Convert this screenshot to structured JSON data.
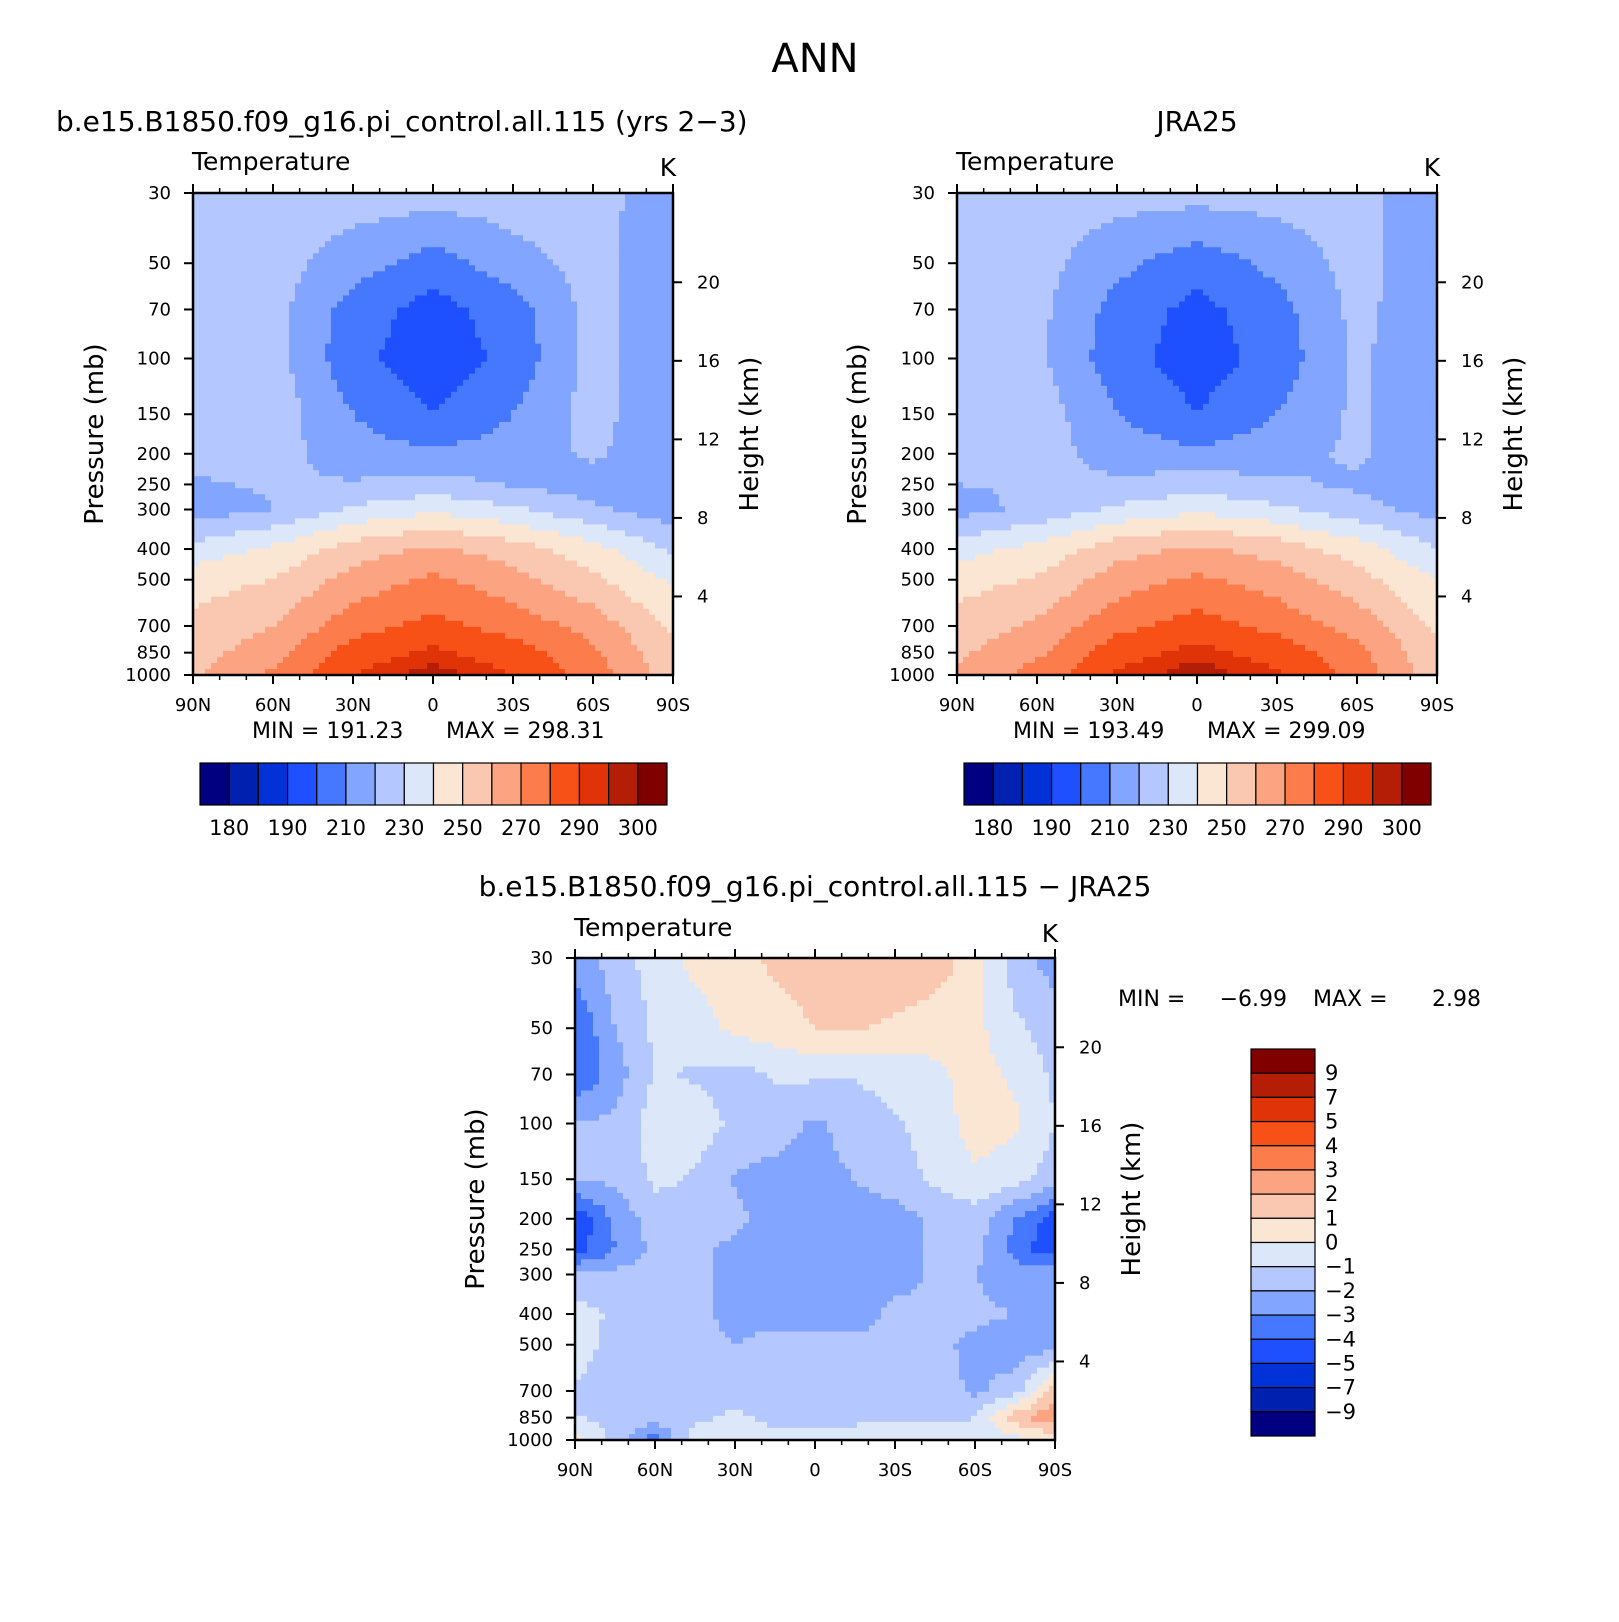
{
  "page_title": "ANN",
  "chart_data": [
    {
      "type": "heatmap",
      "id": "model",
      "title": "b.e15.B1850.f09_g16.pi_control.all.115 (yrs 2−3)",
      "variable": "Temperature",
      "units": "K",
      "ylabel": "Pressure (mb)",
      "y2label": "Height (km)",
      "x": [
        "90N",
        "60N",
        "30N",
        "0",
        "30S",
        "60S",
        "90S"
      ],
      "y": [
        "30",
        "50",
        "70",
        "100",
        "150",
        "200",
        "250",
        "300",
        "400",
        "500",
        "700",
        "850",
        "1000"
      ],
      "y2": [
        "20",
        "16",
        "12",
        "8",
        "4"
      ],
      "min_label": "MIN = 191.23",
      "max_label": "MAX = 298.31",
      "min": 191.23,
      "max": 298.31,
      "colorbar": {
        "orientation": "horizontal",
        "colors": [
          "#000080",
          "#0020b0",
          "#0032d8",
          "#1e50ff",
          "#4678ff",
          "#82a5ff",
          "#b4c8ff",
          "#dce8fa",
          "#fbe6d4",
          "#fac8b0",
          "#fca482",
          "#fc7d4b",
          "#f85118",
          "#e13308",
          "#b41e06",
          "#800000"
        ],
        "labels": [
          "180",
          "190",
          "210",
          "230",
          "250",
          "270",
          "290",
          "300"
        ]
      },
      "contour_levels": [
        180,
        185,
        190,
        200,
        210,
        220,
        230,
        240,
        250,
        260,
        270,
        280,
        290,
        295,
        300
      ],
      "lat": [
        90,
        60,
        30,
        0,
        -30,
        -60,
        -90
      ],
      "values": [
        [
          222,
          225,
          225,
          225,
          225,
          225,
          212
        ],
        [
          222,
          224,
          215,
          205,
          216,
          224,
          211
        ],
        [
          222,
          224,
          205,
          196,
          205,
          224,
          211
        ],
        [
          222,
          224,
          203,
          194,
          203,
          224,
          211
        ],
        [
          224,
          226,
          210,
          200,
          210,
          224,
          211
        ],
        [
          222,
          224,
          214,
          212,
          214,
          222,
          211
        ],
        [
          219,
          221,
          221,
          224,
          219,
          215,
          212
        ],
        [
          214,
          220,
          232,
          238,
          232,
          222,
          214
        ],
        [
          234,
          242,
          255,
          262,
          255,
          244,
          228
        ],
        [
          246,
          250,
          264,
          272,
          264,
          252,
          238
        ],
        [
          252,
          260,
          276,
          283,
          276,
          266,
          248
        ],
        [
          256,
          266,
          285,
          292,
          285,
          272,
          252
        ],
        [
          258,
          272,
          290,
          298,
          290,
          276,
          254
        ]
      ]
    },
    {
      "type": "heatmap",
      "id": "obs",
      "title": "JRA25",
      "variable": "Temperature",
      "units": "K",
      "ylabel": "Pressure (mb)",
      "y2label": "Height (km)",
      "x": [
        "90N",
        "60N",
        "30N",
        "0",
        "30S",
        "60S",
        "90S"
      ],
      "y": [
        "30",
        "50",
        "70",
        "100",
        "150",
        "200",
        "250",
        "300",
        "400",
        "500",
        "700",
        "850",
        "1000"
      ],
      "y2": [
        "20",
        "16",
        "12",
        "8",
        "4"
      ],
      "min_label": "MIN = 193.49",
      "max_label": "MAX = 299.09",
      "min": 193.49,
      "max": 299.09,
      "colorbar": {
        "orientation": "horizontal",
        "colors": [
          "#000080",
          "#0020b0",
          "#0032d8",
          "#1e50ff",
          "#4678ff",
          "#82a5ff",
          "#b4c8ff",
          "#dce8fa",
          "#fbe6d4",
          "#fac8b0",
          "#fca482",
          "#fc7d4b",
          "#f85118",
          "#e13308",
          "#b41e06",
          "#800000"
        ],
        "labels": [
          "180",
          "190",
          "210",
          "230",
          "250",
          "270",
          "290",
          "300"
        ]
      },
      "contour_levels": [
        180,
        185,
        190,
        200,
        210,
        220,
        230,
        240,
        250,
        260,
        270,
        280,
        290,
        295,
        300
      ],
      "lat": [
        90,
        60,
        30,
        0,
        -30,
        -60,
        -90
      ],
      "values": [
        [
          222,
          224,
          224,
          224,
          224,
          224,
          212
        ],
        [
          222,
          224,
          213,
          204,
          213,
          224,
          212
        ],
        [
          222,
          223,
          206,
          197,
          206,
          223,
          212
        ],
        [
          222,
          222,
          204,
          195,
          204,
          222,
          211
        ],
        [
          226,
          226,
          210,
          200,
          210,
          222,
          212
        ],
        [
          226,
          224,
          216,
          212,
          216,
          222,
          212
        ],
        [
          220,
          221,
          222,
          225,
          222,
          218,
          214
        ],
        [
          216,
          223,
          232,
          238,
          232,
          224,
          216
        ],
        [
          236,
          243,
          256,
          262,
          256,
          245,
          230
        ],
        [
          246,
          251,
          265,
          272,
          265,
          254,
          240
        ],
        [
          254,
          262,
          277,
          284,
          277,
          266,
          248
        ],
        [
          258,
          268,
          286,
          293,
          286,
          273,
          252
        ],
        [
          262,
          274,
          291,
          299,
          291,
          276,
          254
        ]
      ]
    },
    {
      "type": "heatmap",
      "id": "diff",
      "title": "b.e15.B1850.f09_g16.pi_control.all.115 − JRA25",
      "variable": "Temperature",
      "units": "K",
      "ylabel": "Pressure (mb)",
      "y2label": "Height (km)",
      "x": [
        "90N",
        "60N",
        "30N",
        "0",
        "30S",
        "60S",
        "90S"
      ],
      "y": [
        "30",
        "50",
        "70",
        "100",
        "150",
        "200",
        "250",
        "300",
        "400",
        "500",
        "700",
        "850",
        "1000"
      ],
      "y2": [
        "20",
        "16",
        "12",
        "8",
        "4"
      ],
      "min_label": "MIN =",
      "min_value": "−6.99",
      "max_label": "MAX =",
      "max_value": "2.98",
      "min": -6.99,
      "max": 2.98,
      "colorbar": {
        "orientation": "vertical",
        "colors": [
          "#000080",
          "#0020b0",
          "#0032d8",
          "#1e50ff",
          "#4678ff",
          "#82a5ff",
          "#b4c8ff",
          "#dce8fa",
          "#fbe6d4",
          "#fac8b0",
          "#fca482",
          "#fc7d4b",
          "#f85118",
          "#e13308",
          "#b41e06",
          "#800000"
        ],
        "labels": [
          "9",
          "7",
          "5",
          "4",
          "3",
          "2",
          "1",
          "0",
          "−1",
          "−2",
          "−3",
          "−4",
          "−5",
          "−7",
          "−9"
        ]
      },
      "contour_levels": [
        -9,
        -7,
        -5,
        -4,
        -3,
        -2,
        -1,
        0,
        1,
        2,
        3,
        4,
        5,
        7,
        9
      ],
      "lat": [
        90,
        75,
        60,
        45,
        30,
        15,
        0,
        -15,
        -30,
        -45,
        -60,
        -75,
        -90
      ],
      "values": [
        [
          -2.5,
          -1.5,
          -0.5,
          0.3,
          0.6,
          1.2,
          1.5,
          1.8,
          1.9,
          1.6,
          0.5,
          -1.5,
          -2.5
        ],
        [
          -4.0,
          -2.0,
          -0.8,
          -0.5,
          0.3,
          0.6,
          1.0,
          1.1,
          0.8,
          0.4,
          0.3,
          -0.8,
          -1.5
        ],
        [
          -4.0,
          -2.5,
          -0.9,
          -1.1,
          -1.4,
          -0.9,
          -0.8,
          -0.9,
          -0.6,
          -0.2,
          0.4,
          -0.2,
          -1.2
        ],
        [
          -2.0,
          -1.8,
          -0.5,
          -0.5,
          -1.2,
          -1.5,
          -2.2,
          -1.6,
          -1.1,
          -0.6,
          0.5,
          0.2,
          -1.0
        ],
        [
          -2.0,
          -1.8,
          -0.8,
          -1.1,
          -2.1,
          -2.4,
          -2.3,
          -2.0,
          -1.5,
          -0.8,
          -0.2,
          -0.6,
          -1.5
        ],
        [
          -4.8,
          -2.8,
          -1.4,
          -1.4,
          -1.8,
          -2.3,
          -2.4,
          -2.4,
          -2.4,
          -1.8,
          -1.5,
          -3.0,
          -4.5
        ],
        [
          -4.5,
          -3.0,
          -1.7,
          -1.8,
          -2.2,
          -2.2,
          -2.4,
          -2.2,
          -2.2,
          -1.9,
          -1.6,
          -3.4,
          -4.8
        ],
        [
          -1.8,
          -1.7,
          -1.6,
          -1.8,
          -2.2,
          -2.5,
          -2.5,
          -2.3,
          -2.3,
          -1.9,
          -2.0,
          -2.5,
          -2.0
        ],
        [
          -0.5,
          -1.2,
          -1.6,
          -1.8,
          -2.2,
          -2.2,
          -2.2,
          -2.4,
          -1.8,
          -1.8,
          -1.8,
          -2.0,
          -2.5
        ],
        [
          -0.6,
          -1.3,
          -1.6,
          -1.8,
          -2.0,
          -1.8,
          -1.8,
          -1.8,
          -1.8,
          -1.8,
          -2.2,
          -2.6,
          -2.5
        ],
        [
          -1.1,
          -1.4,
          -1.6,
          -1.8,
          -1.5,
          -1.5,
          -1.6,
          -1.6,
          -1.8,
          -1.5,
          -2.2,
          -1.5,
          1.5
        ],
        [
          -1.0,
          -1.2,
          -1.5,
          -1.2,
          -0.8,
          -1.2,
          -1.5,
          -1.2,
          -1.1,
          -1.2,
          -1.0,
          1.5,
          3.0
        ],
        [
          0.5,
          -1.5,
          -3.5,
          -0.5,
          -0.8,
          -0.8,
          -0.6,
          -0.6,
          -0.6,
          -0.4,
          -0.5,
          -0.3,
          0.0
        ]
      ]
    }
  ]
}
